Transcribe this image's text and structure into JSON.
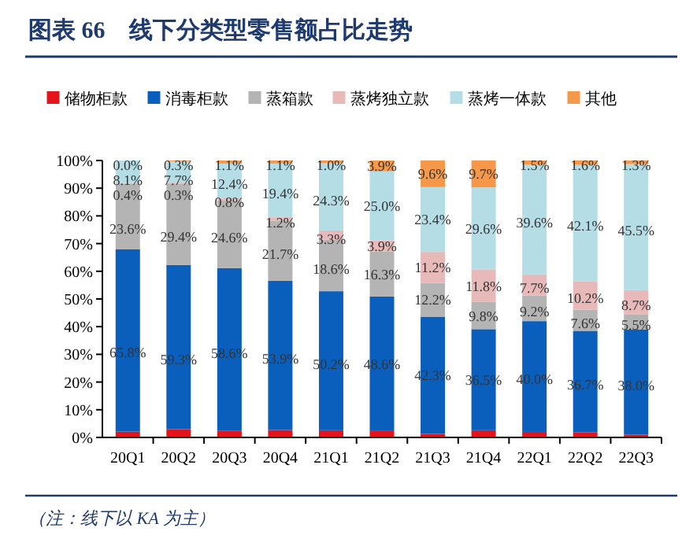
{
  "chart_data": {
    "type": "bar",
    "title": "图表 66　线下分类型零售额占比走势",
    "stacked": true,
    "legend": "top",
    "grid": false,
    "categories": [
      "20Q1",
      "20Q2",
      "20Q3",
      "20Q4",
      "21Q1",
      "21Q2",
      "21Q3",
      "21Q4",
      "22Q1",
      "22Q2",
      "22Q3"
    ],
    "series": [
      {
        "name": "储物柜款",
        "color": "#e3141b",
        "values": [
          2.1,
          3.0,
          2.5,
          2.7,
          2.6,
          2.3,
          1.3,
          2.6,
          2.0,
          1.8,
          1.0
        ]
      },
      {
        "name": "消毒柜款",
        "color": "#0a5fbd",
        "values": [
          65.8,
          59.3,
          58.6,
          53.9,
          50.2,
          48.6,
          42.3,
          36.5,
          40.0,
          36.7,
          38.0
        ],
        "value_labels": [
          "65.8%",
          "59.3%",
          "58.6%",
          "53.9%",
          "50.2%",
          "48.6%",
          "42.3%",
          "36.5%",
          "40.0%",
          "36.7%",
          "38.0%"
        ]
      },
      {
        "name": "蒸箱款",
        "color": "#b4b4b4",
        "values": [
          23.6,
          29.4,
          24.6,
          21.7,
          18.6,
          16.3,
          12.2,
          9.8,
          9.2,
          7.6,
          5.5
        ],
        "value_labels": [
          "23.6%",
          "29.4%",
          "24.6%",
          "21.7%",
          "18.6%",
          "16.3%",
          "12.2%",
          "9.8%",
          "9.2%",
          "7.6%",
          "5.5%"
        ]
      },
      {
        "name": "蒸烤独立款",
        "color": "#e8b9b9",
        "values": [
          0.4,
          0.3,
          0.8,
          1.2,
          3.3,
          3.9,
          11.2,
          11.8,
          7.7,
          10.2,
          8.7
        ],
        "value_labels": [
          "0.4%",
          "0.3%",
          "0.8%",
          "1.2%",
          "3.3%",
          "3.9%",
          "11.2%",
          "11.8%",
          "7.7%",
          "10.2%",
          "8.7%"
        ]
      },
      {
        "name": "蒸烤一体款",
        "color": "#b4dde6",
        "values": [
          8.1,
          7.7,
          12.4,
          19.4,
          24.3,
          25.0,
          23.4,
          29.6,
          39.6,
          42.1,
          45.5
        ],
        "value_labels": [
          "8.1%",
          "7.7%",
          "12.4%",
          "19.4%",
          "24.3%",
          "25.0%",
          "23.4%",
          "29.6%",
          "39.6%",
          "42.1%",
          "45.5%"
        ]
      },
      {
        "name": "其他",
        "color": "#f5984a",
        "values": [
          0.0,
          0.3,
          1.1,
          1.1,
          1.0,
          3.9,
          9.6,
          9.7,
          1.5,
          1.6,
          1.3
        ],
        "value_labels": [
          "0.0%",
          "0.3%",
          "1.1%",
          "1.1%",
          "1.0%",
          "3.9%",
          "9.6%",
          "9.7%",
          "1.5%",
          "1.6%",
          "1.3%"
        ]
      }
    ],
    "ylim": [
      0,
      100
    ],
    "yticks": [
      {
        "value": 0,
        "label": "0%"
      },
      {
        "value": 10,
        "label": "10%"
      },
      {
        "value": 20,
        "label": "20%"
      },
      {
        "value": 30,
        "label": "30%"
      },
      {
        "value": 40,
        "label": "40%"
      },
      {
        "value": 50,
        "label": "50%"
      },
      {
        "value": 60,
        "label": "60%"
      },
      {
        "value": 70,
        "label": "70%"
      },
      {
        "value": 80,
        "label": "80%"
      },
      {
        "value": 90,
        "label": "90%"
      },
      {
        "value": 100,
        "label": "100%"
      }
    ],
    "annotations": [
      "（注：线下以 KA 为主）"
    ]
  }
}
